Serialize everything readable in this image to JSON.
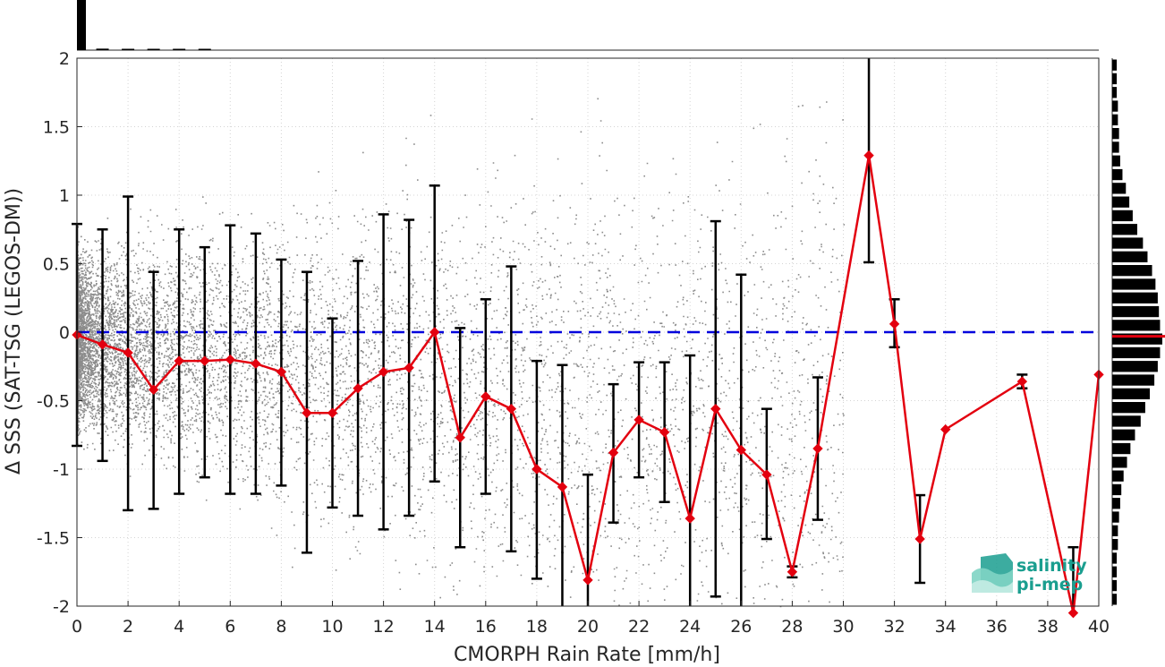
{
  "chart_data": {
    "type": "scatter",
    "xlabel": "CMORPH Rain Rate [mm/h]",
    "ylabel": "Δ SSS (SAT-TSG (LEGOS-DM))",
    "xlim": [
      0,
      40
    ],
    "ylim": [
      -2,
      2
    ],
    "x_ticks": [
      0,
      2,
      4,
      6,
      8,
      10,
      12,
      14,
      16,
      18,
      20,
      22,
      24,
      26,
      28,
      30,
      32,
      34,
      36,
      38,
      40
    ],
    "x_tick_labels": [
      "0",
      "2",
      "4",
      "6",
      "8",
      "10",
      "12",
      "14",
      "16",
      "18",
      "20",
      "22",
      "24",
      "26",
      "28",
      "30",
      "32",
      "34",
      "36",
      "38",
      "40"
    ],
    "y_ticks": [
      2,
      1.5,
      1,
      0.5,
      0,
      -0.5,
      -1,
      -1.5,
      -2
    ],
    "y_tick_labels": [
      "2",
      "1.5",
      "1",
      "0.5",
      "0",
      "-0.5",
      "-1",
      "-1.5",
      "-2"
    ],
    "grid": true,
    "reference_line": {
      "y": 0,
      "color": "#0000dd",
      "style": "dashed"
    },
    "series": [
      {
        "type": "line",
        "color": "#e3000f",
        "marker": "diamond",
        "x": [
          0,
          1,
          2,
          3,
          4,
          5,
          6,
          7,
          8,
          9,
          10,
          11,
          12,
          13,
          14,
          15,
          16,
          17,
          18,
          19,
          20,
          21,
          22,
          23,
          24,
          25,
          26,
          27,
          28,
          29,
          31,
          32,
          33,
          34,
          37,
          39,
          40
        ],
        "y": [
          -0.02,
          -0.09,
          -0.15,
          -0.42,
          -0.21,
          -0.21,
          -0.2,
          -0.23,
          -0.29,
          -0.59,
          -0.59,
          -0.41,
          -0.29,
          -0.26,
          0.0,
          -0.77,
          -0.47,
          -0.56,
          -1.0,
          -1.13,
          -1.81,
          -0.88,
          -0.64,
          -0.73,
          -1.36,
          -0.56,
          -0.86,
          -1.04,
          -1.75,
          -0.85,
          1.29,
          0.06,
          -1.51,
          -0.71,
          -0.36,
          -2.05,
          -0.31
        ]
      }
    ],
    "error_bars": {
      "color": "#000000",
      "x": [
        0,
        1,
        2,
        3,
        4,
        5,
        6,
        7,
        8,
        9,
        10,
        11,
        12,
        13,
        14,
        15,
        16,
        17,
        18,
        19,
        20,
        21,
        22,
        23,
        24,
        25,
        26,
        27,
        28,
        29,
        31,
        32,
        33,
        37,
        39
      ],
      "low": [
        -0.83,
        -0.94,
        -1.3,
        -1.29,
        -1.18,
        -1.06,
        -1.18,
        -1.18,
        -1.12,
        -1.61,
        -1.28,
        -1.34,
        -1.44,
        -1.34,
        -1.09,
        -1.57,
        -1.18,
        -1.6,
        -1.8,
        -2.0,
        -2.0,
        -1.39,
        -1.06,
        -1.24,
        -2.0,
        -1.93,
        -2.0,
        -1.51,
        -1.79,
        -1.37,
        0.51,
        -0.11,
        -1.83,
        -0.41,
        -2.0
      ],
      "high": [
        0.79,
        0.75,
        0.99,
        0.44,
        0.75,
        0.62,
        0.78,
        0.72,
        0.53,
        0.44,
        0.1,
        0.52,
        0.86,
        0.82,
        1.07,
        0.03,
        0.24,
        0.48,
        -0.21,
        -0.24,
        -1.04,
        -0.38,
        -0.22,
        -0.22,
        -0.17,
        0.81,
        0.42,
        -0.56,
        -1.71,
        -0.33,
        2.0,
        0.24,
        -1.19,
        -0.31,
        -1.57
      ]
    },
    "marginal_histogram_right": {
      "color": "#000000",
      "median_line_color": "#e3000f",
      "y_bins": [
        1.95,
        1.85,
        1.75,
        1.65,
        1.55,
        1.45,
        1.35,
        1.25,
        1.15,
        1.05,
        0.95,
        0.85,
        0.75,
        0.65,
        0.55,
        0.45,
        0.35,
        0.25,
        0.15,
        0.05,
        -0.05,
        -0.15,
        -0.25,
        -0.35,
        -0.45,
        -0.55,
        -0.65,
        -0.75,
        -0.85,
        -0.95,
        -1.05,
        -1.15,
        -1.25,
        -1.35,
        -1.45,
        -1.55,
        -1.65,
        -1.75,
        -1.85,
        -1.95
      ],
      "counts": [
        4,
        4,
        4,
        5,
        5,
        6,
        6,
        7,
        9,
        12,
        15,
        18,
        22,
        27,
        31,
        35,
        38,
        40,
        41,
        42,
        44,
        42,
        40,
        37,
        33,
        29,
        25,
        20,
        16,
        13,
        10,
        8,
        7,
        6,
        5,
        5,
        4,
        4,
        4,
        4
      ]
    },
    "marginal_histogram_top": {
      "color": "#000000",
      "x_bins": [
        0.25,
        1.0,
        2.0,
        3.0,
        4.0,
        5.0
      ],
      "counts": [
        100,
        3,
        2,
        1,
        1,
        1
      ]
    }
  },
  "logo": {
    "line1": "salinity",
    "line2": "pi-mep",
    "color": "#1a9e8f"
  }
}
